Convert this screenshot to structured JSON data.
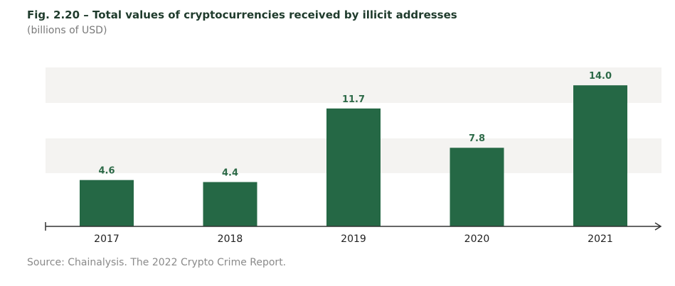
{
  "chart_data": {
    "type": "bar",
    "title": "Fig. 2.20 – Total values of cryptocurrencies received by illicit addresses",
    "subtitle": "(billions of USD)",
    "categories": [
      "2017",
      "2018",
      "2019",
      "2020",
      "2021"
    ],
    "values": [
      4.6,
      4.4,
      11.7,
      7.8,
      14.0
    ],
    "value_labels": [
      "4.6",
      "4.4",
      "11.7",
      "7.8",
      "14.0"
    ],
    "xlabel": "",
    "ylabel": "",
    "ylim": [
      0,
      15.5
    ],
    "bar_color": "#256845",
    "label_color": "#2d6a48",
    "source": "Source: Chainalysis. The 2022 Crypto Crime Report."
  }
}
